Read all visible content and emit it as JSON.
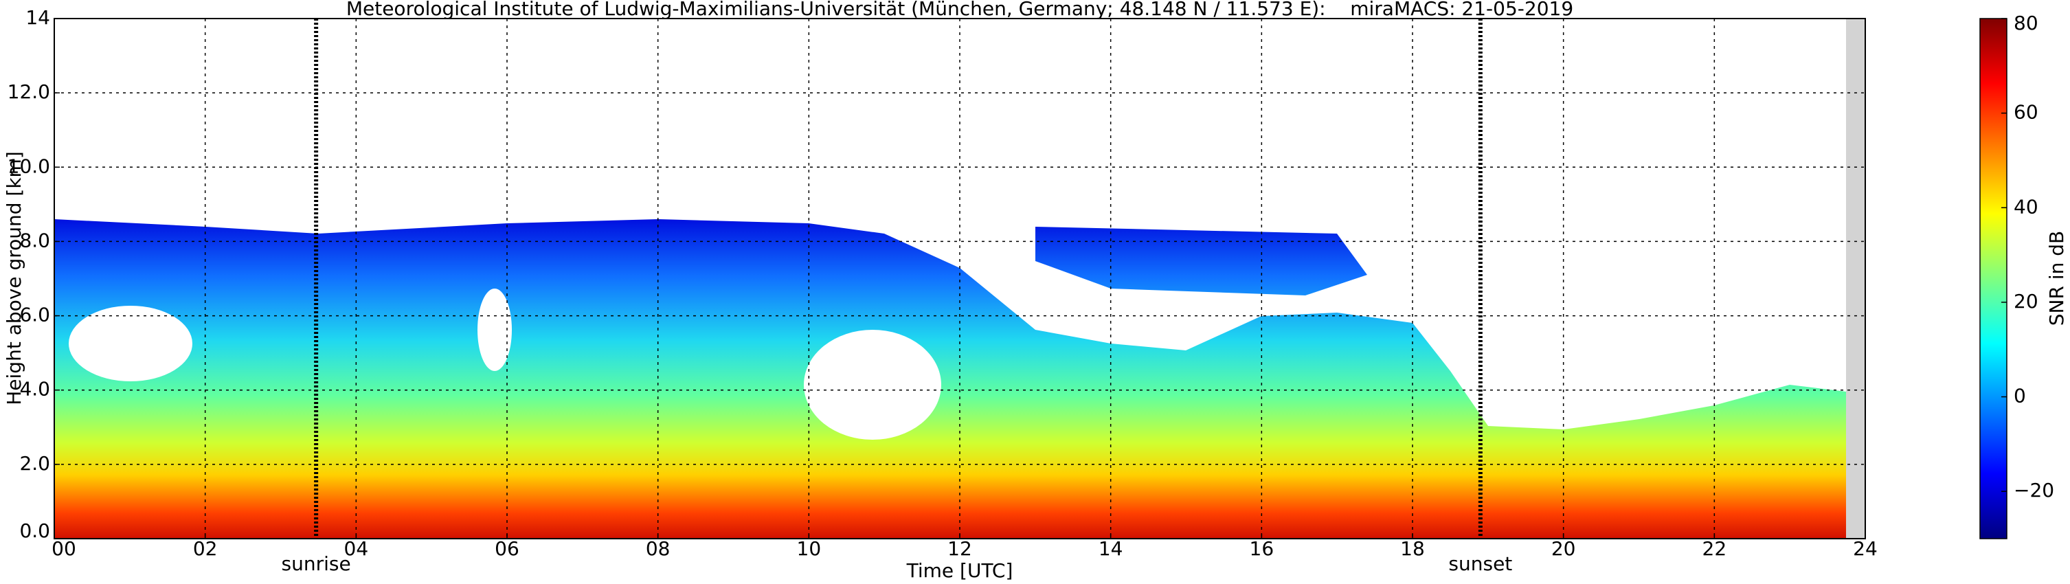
{
  "chart_data": {
    "type": "heatmap",
    "title": "Meteorological Institute of Ludwig-Maximilians-Universität (München, Germany; 48.148 N / 11.573 E):    miraMACS: 21-05-2019",
    "xlabel": "Time [UTC]",
    "ylabel": "Height above ground [km]",
    "xlim": [
      0,
      24
    ],
    "xticks": [
      {
        "value": 0,
        "label": "00"
      },
      {
        "value": 2,
        "label": "02"
      },
      {
        "value": 4,
        "label": "04"
      },
      {
        "value": 6,
        "label": "06"
      },
      {
        "value": 8,
        "label": "08"
      },
      10,
      12,
      14,
      16,
      18,
      20,
      22,
      24
    ],
    "ylim": [
      0,
      14
    ],
    "yticks": [
      {
        "value": 0,
        "label": "0.0"
      },
      {
        "value": 2,
        "label": "2.0"
      },
      {
        "value": 4,
        "label": "4.0"
      },
      {
        "value": 6,
        "label": "6.0"
      },
      {
        "value": 8,
        "label": "8.0"
      },
      {
        "value": 10,
        "label": "10.0"
      },
      {
        "value": 12,
        "label": "12.0"
      },
      14
    ],
    "grid": true,
    "colorbar": {
      "label": "SNR in dB",
      "colormap": "jet",
      "lim": [
        -30,
        80
      ],
      "ticks": [
        {
          "value": -20,
          "label": "−20"
        },
        0,
        20,
        40,
        60,
        80
      ]
    },
    "annotations": [
      {
        "text": "sunrise",
        "x": 3.47
      },
      {
        "text": "sunset",
        "x": 18.9
      }
    ]
  }
}
